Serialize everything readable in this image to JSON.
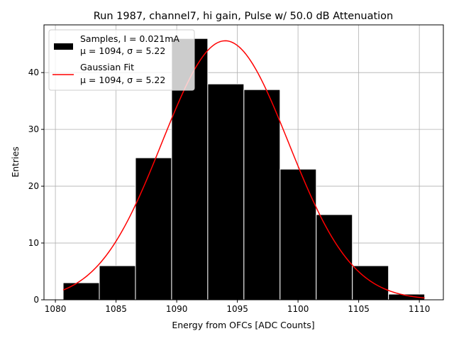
{
  "chart_data": {
    "type": "bar",
    "title": "Run 1987, channel7, hi gain, Pulse w/ 50.0 dB Attenuation",
    "xlabel": "Energy from OFCs [ADC Counts]",
    "ylabel": "Entries",
    "xlim": [
      1079.06,
      1111.98
    ],
    "ylim": [
      0,
      48.4
    ],
    "xticks": [
      1080,
      1085,
      1090,
      1095,
      1100,
      1105,
      1110
    ],
    "yticks": [
      0,
      10,
      20,
      30,
      40
    ],
    "grid": true,
    "legend_placement": "top-left",
    "bin_edges": [
      1080.64,
      1083.62,
      1086.6,
      1089.58,
      1092.56,
      1095.54,
      1098.52,
      1101.5,
      1104.48,
      1107.46,
      1110.44
    ],
    "values": [
      3,
      6,
      25,
      46,
      38,
      37,
      23,
      15,
      6,
      1
    ],
    "fit": {
      "type": "gaussian",
      "mu": 1094,
      "sigma": 5.22,
      "amplitude": 45.6,
      "x_range": [
        1080.64,
        1110.44
      ]
    },
    "series": [
      {
        "name": "Samples, I = 0.021mA",
        "stats": "μ = 1094, σ = 5.22",
        "color": "#000000"
      },
      {
        "name": "Gaussian Fit",
        "stats": "μ = 1094, σ = 5.22",
        "color": "#ff0000"
      }
    ]
  }
}
